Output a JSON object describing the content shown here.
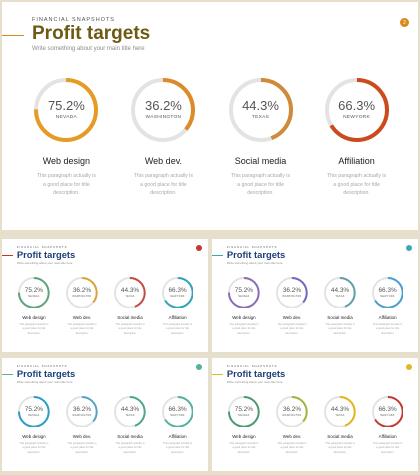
{
  "kicker": "FINANCIAL SNAPSHOTS",
  "title": "Profit targets",
  "subtitle": "Write something about your main title here",
  "page_number": "2",
  "description": "This paragraph actually is a good place for title description.",
  "items": [
    {
      "percent": "75.2%",
      "value": 75.2,
      "city": "NEVADA",
      "label": "Web design"
    },
    {
      "percent": "36.2%",
      "value": 36.2,
      "city": "WASHINGTON",
      "label": "Web dev."
    },
    {
      "percent": "44.3%",
      "value": 44.3,
      "city": "TEXAS",
      "label": "Social media"
    },
    {
      "percent": "66.3%",
      "value": 66.3,
      "city": "NEWYORK",
      "label": "Affiliation"
    }
  ],
  "slides": [
    {
      "title_color": "#6e5a12",
      "accent": "#d9891b",
      "ring_colors": [
        "#e59b24",
        "#dd8a28",
        "#cf8a3a",
        "#cc4a1d"
      ]
    },
    {
      "title_color": "#1d3e78",
      "accent": "#c0392b",
      "ring_colors": [
        "#5fa37c",
        "#d9a43a",
        "#c64a3d",
        "#2fa3b8"
      ]
    },
    {
      "title_color": "#1d3e78",
      "accent": "#3aa7b5",
      "ring_colors": [
        "#8b6db6",
        "#6e69c2",
        "#5fa0a8",
        "#4a9fd0"
      ]
    },
    {
      "title_color": "#1d3e78",
      "accent": "#56b09a",
      "ring_colors": [
        "#2a9fc6",
        "#58a3c8",
        "#4ba88a",
        "#52b3a0"
      ]
    },
    {
      "title_color": "#1d3e78",
      "accent": "#e0b820",
      "ring_colors": [
        "#4c9a72",
        "#9cb83c",
        "#e5b31c",
        "#c43a2e"
      ]
    }
  ]
}
